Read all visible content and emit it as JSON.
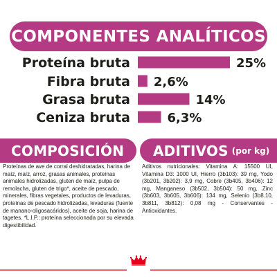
{
  "header": {
    "title": "COMPONENTES ANALÍTICOS"
  },
  "chart_data": {
    "type": "bar",
    "orientation": "horizontal",
    "title": "COMPONENTES ANALÍTICOS",
    "categories": [
      "Proteína bruta",
      "Fibra bruta",
      "Grasa bruta",
      "Ceniza bruta"
    ],
    "values": [
      25,
      2.6,
      14,
      6.3
    ],
    "value_labels": [
      "25%",
      "2,6%",
      "14%",
      "6,3%"
    ],
    "unit": "%",
    "bar_color": "#b43a83",
    "xlim": [
      0,
      25
    ]
  },
  "composition": {
    "title": "COMPOSICIÓN",
    "text": "Proteínas de ave de corral deshidratadas, harina de maíz, maíz, arroz, grasas animales, proteínas animales hidrolizadas, gluten de maíz, pulpa de remolacha, gluten de trigo*, aceite de pescado, minerales, fibras vegetales, productos de levaduras, proteínas de pescado hidrolizadas, levaduras (fuente de manano-oligosacáridos), aceite de soja, harina de tagetes. *L.I.P.: proteína seleccionada por su elevada digestibilidad."
  },
  "additives": {
    "title": "ADITIVOS",
    "subtitle": "(por kg)",
    "text": "Aditivos nutricionales: Vitamina A: 15500 UI, Vitamina D3: 1000 UI, Hierro (3b103): 39 mg, Yodo (3b201, 3b202): 3,9 mg, Cobre (3b405, 3b406): 12 mg, Manganeso (3b502, 3b504): 50 mg, Zinc (3b603, 3b605, 3b606): 134 mg, Selenio (3b8.10, 3b811, 3b812): 0,08 mg - Conservantes - Antioxidantes."
  },
  "colors": {
    "accent": "#b43a83",
    "brand_red": "#e2001a",
    "text": "#1d1d1b"
  },
  "logo": {
    "icon": "royal-crown-icon"
  }
}
